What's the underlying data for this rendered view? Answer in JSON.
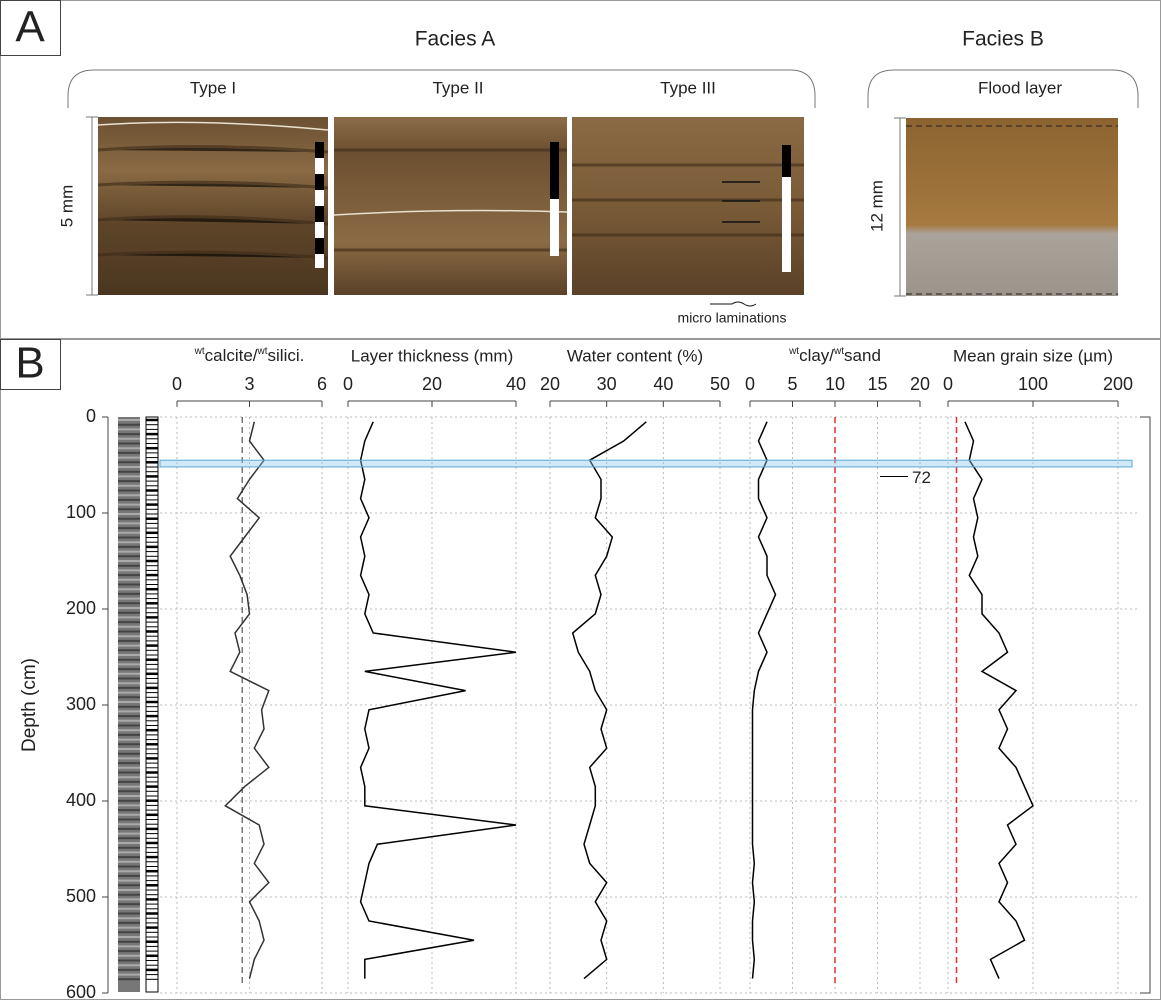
{
  "panel_a": {
    "label": "A",
    "facies": [
      {
        "title": "Facies A",
        "types": [
          "Type I",
          "Type II",
          "Type III"
        ],
        "scale": "5 mm"
      },
      {
        "title": "Facies B",
        "types": [
          "Flood layer"
        ],
        "scale": "12 mm"
      }
    ],
    "annotation": "micro laminations"
  },
  "panel_b": {
    "label": "B",
    "highlight": [
      45,
      52
    ]
  },
  "chart_data": [
    {
      "type": "line",
      "title": [
        {
          "text": "wt",
          "sup": true
        },
        {
          "text": "calcite/"
        },
        {
          "text": "wt",
          "sup": true
        },
        {
          "text": "silici."
        }
      ],
      "ylabel": "Depth (cm)",
      "ylim": [
        0,
        600
      ],
      "yticks": [
        0,
        100,
        200,
        300,
        400,
        500,
        600
      ],
      "depth": [
        5,
        25,
        45,
        65,
        85,
        105,
        125,
        145,
        165,
        185,
        205,
        225,
        245,
        265,
        285,
        305,
        325,
        345,
        365,
        385,
        405,
        425,
        445,
        465,
        485,
        505,
        525,
        545,
        565,
        585
      ],
      "xlim": [
        0,
        6
      ],
      "xticks": [
        0,
        3,
        6
      ],
      "reference": 2.7,
      "reference_color": "#777777",
      "series": [
        {
          "color": "#333333",
          "values": [
            3.2,
            3.0,
            3.6,
            3.0,
            2.5,
            3.4,
            2.8,
            2.2,
            2.6,
            2.9,
            3.0,
            2.4,
            2.6,
            2.2,
            3.8,
            3.5,
            3.6,
            3.2,
            3.8,
            2.8,
            2.0,
            3.4,
            3.6,
            3.2,
            3.8,
            3.0,
            3.4,
            3.6,
            3.2,
            3.0
          ]
        }
      ]
    },
    {
      "type": "line",
      "title": "Layer thickness (mm)",
      "xlim": [
        0,
        40
      ],
      "xticks": [
        0,
        20,
        40
      ],
      "series": [
        {
          "color": "#000000",
          "values": [
            6,
            4,
            3,
            4,
            3,
            5,
            3,
            4,
            3,
            5,
            4,
            6,
            40,
            4,
            28,
            5,
            4,
            5,
            3,
            4,
            4,
            40,
            7,
            5,
            4,
            3,
            5,
            30,
            4,
            4
          ]
        }
      ]
    },
    {
      "type": "line",
      "title": "Water content (%)",
      "xlim": [
        20,
        50
      ],
      "xticks": [
        20,
        30,
        40,
        50
      ],
      "series": [
        {
          "color": "#000000",
          "values": [
            37,
            33,
            27,
            29,
            29,
            28,
            31,
            30,
            28,
            29,
            28,
            24,
            25,
            27,
            28,
            30,
            29,
            30,
            27,
            28,
            28,
            27,
            26,
            27,
            30,
            28,
            30,
            29,
            30,
            26
          ]
        }
      ]
    },
    {
      "type": "line",
      "title": [
        {
          "text": "wt",
          "sup": true
        },
        {
          "text": "clay/"
        },
        {
          "text": "wt",
          "sup": true
        },
        {
          "text": "sand"
        }
      ],
      "xlim": [
        0,
        20
      ],
      "xticks": [
        0,
        5,
        10,
        15,
        20
      ],
      "reference": 10,
      "reference_color": "#e0302a",
      "annotation_depth": 62,
      "annotation_value": 72,
      "series": [
        {
          "color": "#000000",
          "values": [
            2,
            1,
            2,
            1,
            1,
            2,
            1,
            2,
            2,
            3,
            2,
            1,
            2,
            1,
            0.5,
            0.3,
            0.3,
            0.3,
            0.3,
            0.3,
            0.3,
            0.3,
            0.3,
            0.5,
            0.3,
            0.5,
            0.3,
            0.3,
            0.5,
            0.3
          ]
        }
      ]
    },
    {
      "type": "line",
      "title": "Mean grain size (µm)",
      "xlim": [
        0,
        200
      ],
      "xticks": [
        0,
        100,
        200
      ],
      "reference": 10,
      "reference_color": "#e0302a",
      "series": [
        {
          "color": "#000000",
          "values": [
            20,
            30,
            25,
            40,
            30,
            35,
            30,
            35,
            25,
            40,
            40,
            60,
            70,
            40,
            80,
            60,
            70,
            60,
            80,
            90,
            100,
            70,
            80,
            60,
            70,
            60,
            80,
            90,
            50,
            60
          ]
        }
      ]
    }
  ]
}
